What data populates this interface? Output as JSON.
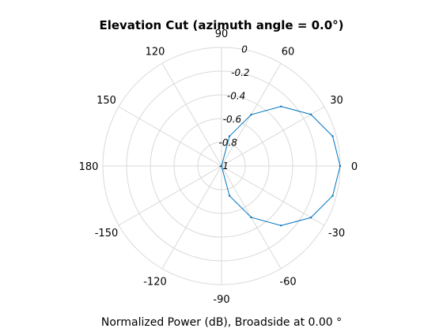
{
  "chart_data": {
    "type": "polar_line",
    "title": "Elevation Cut (azimuth angle = 0.0°)",
    "footer": "Normalized Power (dB), Broadside at 0.00 °",
    "angle_ticks": [
      {
        "deg": 90,
        "label": "90"
      },
      {
        "deg": 60,
        "label": "60"
      },
      {
        "deg": 30,
        "label": "30"
      },
      {
        "deg": 0,
        "label": "0"
      },
      {
        "deg": -30,
        "label": "-30"
      },
      {
        "deg": -60,
        "label": "-60"
      },
      {
        "deg": -90,
        "label": "-90"
      },
      {
        "deg": -120,
        "label": "-120"
      },
      {
        "deg": -150,
        "label": "-150"
      },
      {
        "deg": 180,
        "label": "180"
      },
      {
        "deg": 150,
        "label": "150"
      },
      {
        "deg": 120,
        "label": "120"
      }
    ],
    "radial_ticks": [
      {
        "value": -1,
        "label": "-1"
      },
      {
        "value": -0.8,
        "label": "-0.8"
      },
      {
        "value": -0.6,
        "label": "-0.6"
      },
      {
        "value": -0.4,
        "label": "-0.4"
      },
      {
        "value": -0.2,
        "label": "-0.2"
      },
      {
        "value": 0,
        "label": "0"
      }
    ],
    "radial_range": [
      -1,
      0
    ],
    "grid": true,
    "series": [
      {
        "color": "#0072bd",
        "points": [
          {
            "deg": -90,
            "r": -1.0
          },
          {
            "deg": -75,
            "r": -0.74
          },
          {
            "deg": -60,
            "r": -0.5
          },
          {
            "deg": -45,
            "r": -0.29
          },
          {
            "deg": -30,
            "r": -0.13
          },
          {
            "deg": -15,
            "r": -0.03
          },
          {
            "deg": 0,
            "r": 0.0
          },
          {
            "deg": 15,
            "r": -0.03
          },
          {
            "deg": 30,
            "r": -0.13
          },
          {
            "deg": 45,
            "r": -0.29
          },
          {
            "deg": 60,
            "r": -0.5
          },
          {
            "deg": 75,
            "r": -0.74
          },
          {
            "deg": 90,
            "r": -1.0
          }
        ]
      }
    ]
  }
}
